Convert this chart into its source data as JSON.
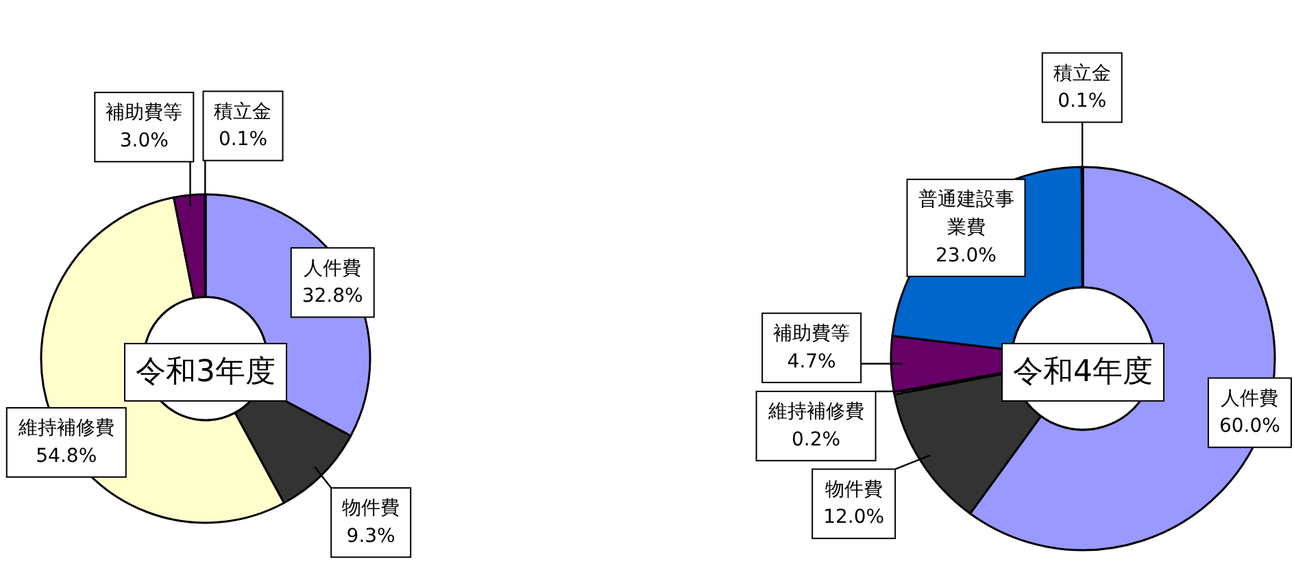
{
  "chart_data": [
    {
      "type": "donut",
      "title": "令和3年度",
      "categories": [
        "人件費",
        "物件費",
        "維持補修費",
        "補助費等",
        "積立金"
      ],
      "values": [
        32.8,
        9.3,
        54.8,
        3.0,
        0.1
      ],
      "value_labels": [
        "32.8%",
        "9.3%",
        "54.8%",
        "3.0%",
        "0.1%"
      ],
      "colors": [
        "#9999ff",
        "#333333",
        "#ffffcc",
        "#660066",
        "#000000"
      ]
    },
    {
      "type": "donut",
      "title": "令和4年度",
      "categories": [
        "人件費",
        "物件費",
        "維持補修費",
        "補助費等",
        "普通建設事業費",
        "積立金"
      ],
      "values": [
        60.0,
        12.0,
        0.2,
        4.7,
        23.0,
        0.1
      ],
      "value_labels": [
        "60.0%",
        "12.0%",
        "0.2%",
        "4.7%",
        "23.0%",
        "0.1%"
      ],
      "colors": [
        "#9999ff",
        "#333333",
        "#ffffcc",
        "#660066",
        "#0066cc",
        "#000000"
      ]
    }
  ]
}
